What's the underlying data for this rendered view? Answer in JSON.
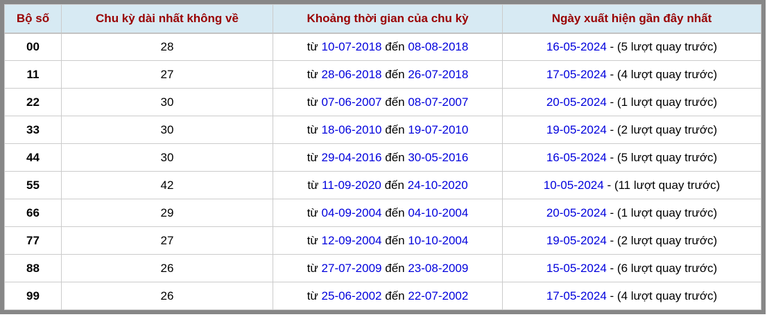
{
  "colors": {
    "header_bg": "#d7eaf3",
    "header_text": "#990000",
    "link_color": "#0000dd",
    "outer_border": "#878787",
    "cell_border": "#cbcbcb",
    "body_text": "#000000",
    "row_bg": "#ffffff"
  },
  "table": {
    "headers": [
      "Bộ số",
      "Chu kỳ dài nhất không về",
      "Khoảng thời gian của chu kỳ",
      "Ngày xuất hiện gần đây nhất"
    ],
    "rows": [
      {
        "pair": "00",
        "cycle": "28",
        "from_label": "từ",
        "from": "10-07-2018",
        "to_label": "đến",
        "to": "08-08-2018",
        "last": "16-05-2024",
        "ago": "- (5 lượt quay trước)"
      },
      {
        "pair": "11",
        "cycle": "27",
        "from_label": "từ",
        "from": "28-06-2018",
        "to_label": "đến",
        "to": "26-07-2018",
        "last": "17-05-2024",
        "ago": "- (4 lượt quay trước)"
      },
      {
        "pair": "22",
        "cycle": "30",
        "from_label": "từ",
        "from": "07-06-2007",
        "to_label": "đến",
        "to": "08-07-2007",
        "last": "20-05-2024",
        "ago": "- (1 lượt quay trước)"
      },
      {
        "pair": "33",
        "cycle": "30",
        "from_label": "từ",
        "from": "18-06-2010",
        "to_label": "đến",
        "to": "19-07-2010",
        "last": "19-05-2024",
        "ago": "- (2 lượt quay trước)"
      },
      {
        "pair": "44",
        "cycle": "30",
        "from_label": "từ",
        "from": "29-04-2016",
        "to_label": "đến",
        "to": "30-05-2016",
        "last": "16-05-2024",
        "ago": "- (5 lượt quay trước)"
      },
      {
        "pair": "55",
        "cycle": "42",
        "from_label": "từ",
        "from": "11-09-2020",
        "to_label": "đến",
        "to": "24-10-2020",
        "last": "10-05-2024",
        "ago": "- (11 lượt quay trước)"
      },
      {
        "pair": "66",
        "cycle": "29",
        "from_label": "từ",
        "from": "04-09-2004",
        "to_label": "đến",
        "to": "04-10-2004",
        "last": "20-05-2024",
        "ago": "- (1 lượt quay trước)"
      },
      {
        "pair": "77",
        "cycle": "27",
        "from_label": "từ",
        "from": "12-09-2004",
        "to_label": "đến",
        "to": "10-10-2004",
        "last": "19-05-2024",
        "ago": "- (2 lượt quay trước)"
      },
      {
        "pair": "88",
        "cycle": "26",
        "from_label": "từ",
        "from": "27-07-2009",
        "to_label": "đến",
        "to": "23-08-2009",
        "last": "15-05-2024",
        "ago": "- (6 lượt quay trước)"
      },
      {
        "pair": "99",
        "cycle": "26",
        "from_label": "từ",
        "from": "25-06-2002",
        "to_label": "đến",
        "to": "22-07-2002",
        "last": "17-05-2024",
        "ago": "- (4 lượt quay trước)"
      }
    ]
  }
}
